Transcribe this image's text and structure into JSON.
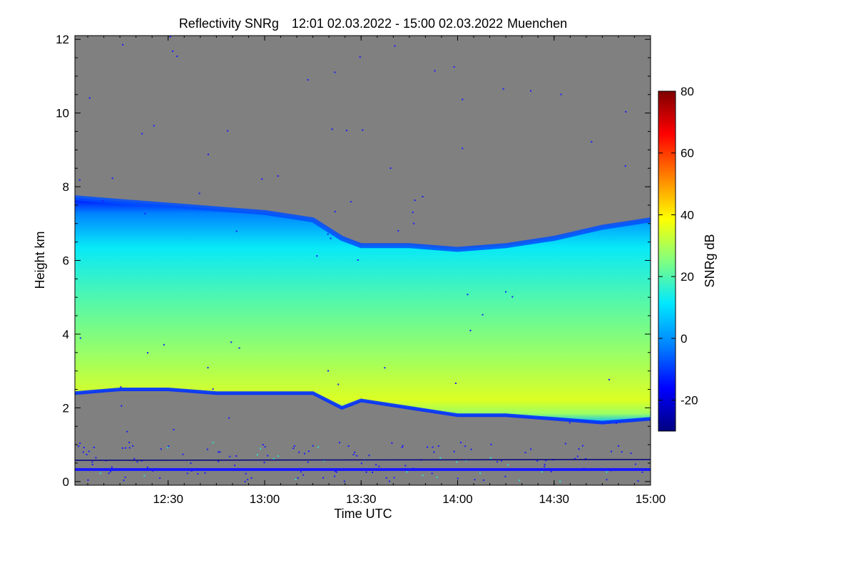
{
  "chart_data": {
    "type": "heatmap",
    "title": "Reflectivity SNRg",
    "time_range": "12:01 02.03.2022 - 15:00 02.03.2022",
    "location": "Muenchen",
    "xlabel": "Time UTC",
    "ylabel": "Height km",
    "colorbar_label": "SNRg dB",
    "x_tick_labels": [
      "12:30",
      "13:00",
      "13:30",
      "14:00",
      "14:30",
      "15:00"
    ],
    "x_ticks_hours": [
      12.5,
      13.0,
      13.5,
      14.0,
      14.5,
      15.0
    ],
    "xlim_hours": [
      12.0167,
      15.0
    ],
    "y_tick_labels": [
      "0",
      "2",
      "4",
      "6",
      "8",
      "10",
      "12"
    ],
    "y_ticks": [
      0,
      2,
      4,
      6,
      8,
      10,
      12
    ],
    "ylim": [
      -0.1,
      12.1
    ],
    "colorbar_tick_labels": [
      "-20",
      "0",
      "20",
      "40",
      "60",
      "80"
    ],
    "colorbar_ticks": [
      -20,
      0,
      20,
      40,
      60,
      80
    ],
    "colorbar_range": [
      -30,
      80
    ],
    "no_signal_color": "#808080",
    "colormap": [
      "#00007f",
      "#0000ff",
      "#0080ff",
      "#00e8ff",
      "#80ff80",
      "#ffff00",
      "#ff8000",
      "#ff0000",
      "#7f0000"
    ],
    "cloud": {
      "times_hours": [
        12.0167,
        12.25,
        12.5,
        12.75,
        13.0,
        13.25,
        13.4,
        13.5,
        13.75,
        14.0,
        14.25,
        14.5,
        14.75,
        15.0
      ],
      "top_km": [
        7.7,
        7.6,
        7.5,
        7.4,
        7.3,
        7.1,
        6.6,
        6.4,
        6.4,
        6.3,
        6.4,
        6.6,
        6.9,
        7.1
      ],
      "base_km": [
        2.4,
        2.5,
        2.5,
        2.4,
        2.4,
        2.4,
        2.0,
        2.2,
        2.0,
        1.8,
        1.8,
        1.7,
        1.6,
        1.7
      ],
      "peak_snr_db": 35
    }
  }
}
